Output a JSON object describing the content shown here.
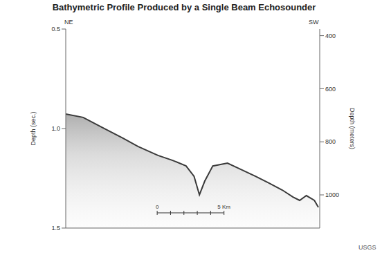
{
  "chart_data": {
    "type": "line",
    "title": "Bathymetric Profile Produced by a Single Beam Echosounder",
    "y_label": "Depth (sec.)",
    "y2_label": "Depth (meters)",
    "annotations": [
      "NE",
      "SW",
      "USGS"
    ],
    "x": [
      0,
      1.3,
      2.8,
      4.3,
      5.4,
      6.9,
      8.0,
      9.0,
      9.6,
      10.0,
      10.4,
      11.0,
      12.1,
      13.1,
      14.2,
      15.2,
      16.2,
      17.0,
      17.5,
      18.0,
      18.6,
      18.9
    ],
    "values": [
      0.927,
      0.944,
      0.997,
      1.049,
      1.09,
      1.135,
      1.16,
      1.188,
      1.24,
      1.333,
      1.264,
      1.188,
      1.174,
      1.205,
      1.24,
      1.274,
      1.309,
      1.344,
      1.361,
      1.337,
      1.361,
      1.396
    ],
    "color": "#3a3a3a",
    "xlim": [
      0,
      19
    ],
    "ylim": [
      0.5,
      1.5
    ],
    "yticks": [
      {
        "value": 0.5,
        "label": "0.5"
      },
      {
        "value": 1,
        "label": "1.0"
      },
      {
        "value": 1.5,
        "label": "1.5"
      }
    ],
    "y2lim": [
      375,
      1125
    ],
    "y2ticks": [
      400,
      600,
      800,
      1000
    ],
    "tick_labels": "y",
    "grid": false,
    "scale_bar": {
      "ticks": [
        0,
        1,
        2,
        3,
        4,
        5
      ],
      "start_label": "0",
      "end_label": "5 Km"
    }
  }
}
